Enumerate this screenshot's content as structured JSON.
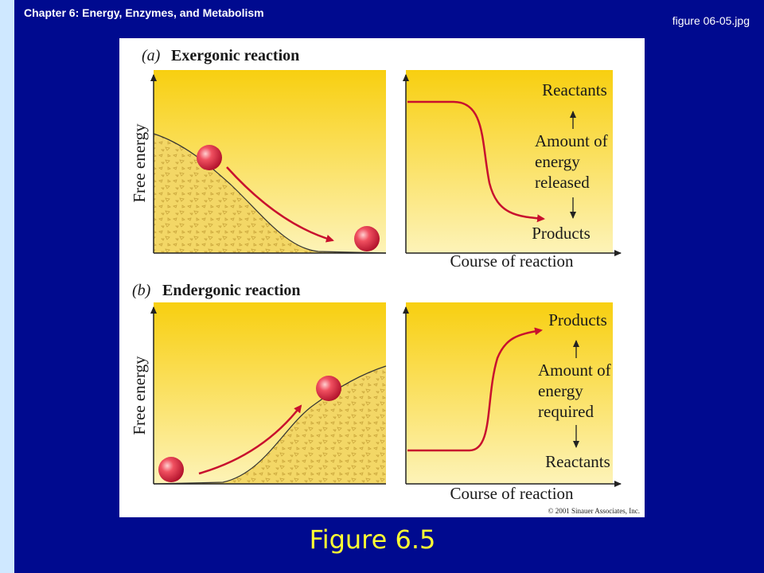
{
  "header": {
    "title": "Chapter 6: Energy, Enzymes, and Metabolism",
    "filename": "figure 06-05.jpg"
  },
  "figure": {
    "panels": [
      {
        "letter": "(a)",
        "title": "Exergonic reaction",
        "y_axis_label": "Free energy",
        "x_axis_label": "Course of reaction",
        "top_label": "Reactants",
        "middle_label": [
          "Amount of",
          "energy",
          "released"
        ],
        "bottom_label": "Products"
      },
      {
        "letter": "(b)",
        "title": "Endergonic reaction",
        "y_axis_label": "Free energy",
        "x_axis_label": "Course of reaction",
        "top_label": "Products",
        "middle_label": [
          "Amount of",
          "energy",
          "required"
        ],
        "bottom_label": "Reactants"
      }
    ],
    "credit": "© 2001 Sinauer Associates, Inc."
  },
  "caption": "Figure 6.5"
}
